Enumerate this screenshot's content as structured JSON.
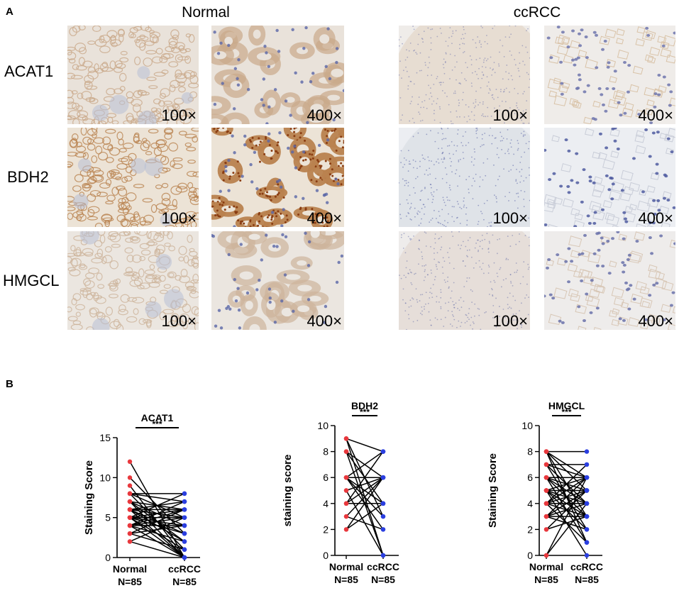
{
  "panel_a": {
    "letter": "A",
    "groups": [
      {
        "title": "Normal"
      },
      {
        "title": "ccRCC"
      }
    ],
    "rows": [
      {
        "label": "ACAT1"
      },
      {
        "label": "BDH2"
      },
      {
        "label": "HMGCL"
      }
    ],
    "magnifications": [
      "100×",
      "400×"
    ]
  },
  "panel_b": {
    "letter": "B"
  },
  "colors": {
    "normal_point": "#e8383d",
    "ccrcc_point": "#2b3fe0",
    "line": "#000000"
  },
  "chart_data": [
    {
      "type": "scatter",
      "title": "ACAT1",
      "ylabel": "Staining Score",
      "categories": [
        "Normal",
        "ccRCC"
      ],
      "sample_labels": [
        "N=85",
        "N=85"
      ],
      "significance": "***",
      "ylim": [
        0,
        15
      ],
      "yticks": [
        0,
        5,
        10,
        15
      ],
      "pairs": [
        [
          12,
          0
        ],
        [
          10,
          3
        ],
        [
          9,
          0
        ],
        [
          8,
          8
        ],
        [
          8,
          7
        ],
        [
          8,
          5
        ],
        [
          7,
          6
        ],
        [
          7,
          4
        ],
        [
          7,
          0
        ],
        [
          6,
          7
        ],
        [
          6,
          5
        ],
        [
          6,
          3
        ],
        [
          6,
          2
        ],
        [
          6,
          6
        ],
        [
          5,
          8
        ],
        [
          5,
          4
        ],
        [
          5,
          1
        ],
        [
          5,
          6
        ],
        [
          5,
          0
        ],
        [
          5,
          3
        ],
        [
          4,
          7
        ],
        [
          4,
          5
        ],
        [
          4,
          2
        ],
        [
          4,
          0
        ],
        [
          4,
          6
        ],
        [
          3,
          4
        ],
        [
          3,
          1
        ],
        [
          2,
          5
        ],
        [
          2,
          0
        ],
        [
          7,
          2
        ],
        [
          6,
          0
        ],
        [
          5,
          5
        ],
        [
          4,
          4
        ],
        [
          8,
          1
        ],
        [
          3,
          6
        ]
      ]
    },
    {
      "type": "scatter",
      "title": "BDH2",
      "ylabel": "staining score",
      "categories": [
        "Normal",
        "ccRCC"
      ],
      "sample_labels": [
        "N=85",
        "N=85"
      ],
      "significance": "***",
      "ylim": [
        0,
        10
      ],
      "yticks": [
        0,
        2,
        4,
        6,
        8,
        10
      ],
      "pairs": [
        [
          9,
          8
        ],
        [
          9,
          3
        ],
        [
          9,
          0
        ],
        [
          8,
          6
        ],
        [
          8,
          4
        ],
        [
          8,
          0
        ],
        [
          6,
          8
        ],
        [
          6,
          6
        ],
        [
          6,
          2
        ],
        [
          6,
          3
        ],
        [
          5,
          6
        ],
        [
          5,
          0
        ],
        [
          4,
          6
        ],
        [
          4,
          4
        ],
        [
          4,
          8
        ],
        [
          3,
          6
        ],
        [
          3,
          2
        ],
        [
          2,
          6
        ],
        [
          2,
          4
        ],
        [
          6,
          4
        ]
      ]
    },
    {
      "type": "scatter",
      "title": "HMGCL",
      "ylabel": "Staining Score",
      "categories": [
        "Normal",
        "ccRCC"
      ],
      "sample_labels": [
        "N=85",
        "N=85"
      ],
      "significance": "***",
      "ylim": [
        0,
        10
      ],
      "yticks": [
        0,
        2,
        4,
        6,
        8,
        10
      ],
      "pairs": [
        [
          8,
          8
        ],
        [
          8,
          5
        ],
        [
          8,
          3
        ],
        [
          8,
          1
        ],
        [
          7,
          7
        ],
        [
          7,
          4
        ],
        [
          7,
          2
        ],
        [
          6,
          6
        ],
        [
          6,
          3
        ],
        [
          6,
          1
        ],
        [
          6,
          5
        ],
        [
          5,
          6
        ],
        [
          5,
          4
        ],
        [
          5,
          2
        ],
        [
          5,
          0
        ],
        [
          5,
          5
        ],
        [
          4,
          7
        ],
        [
          4,
          5
        ],
        [
          4,
          3
        ],
        [
          4,
          1
        ],
        [
          4,
          6
        ],
        [
          3,
          6
        ],
        [
          3,
          4
        ],
        [
          3,
          2
        ],
        [
          3,
          5
        ],
        [
          2,
          5
        ],
        [
          2,
          3
        ],
        [
          0,
          6
        ],
        [
          0,
          4
        ],
        [
          7,
          6
        ],
        [
          6,
          4
        ],
        [
          5,
          3
        ],
        [
          4,
          4
        ],
        [
          3,
          3
        ],
        [
          8,
          6
        ]
      ]
    }
  ]
}
